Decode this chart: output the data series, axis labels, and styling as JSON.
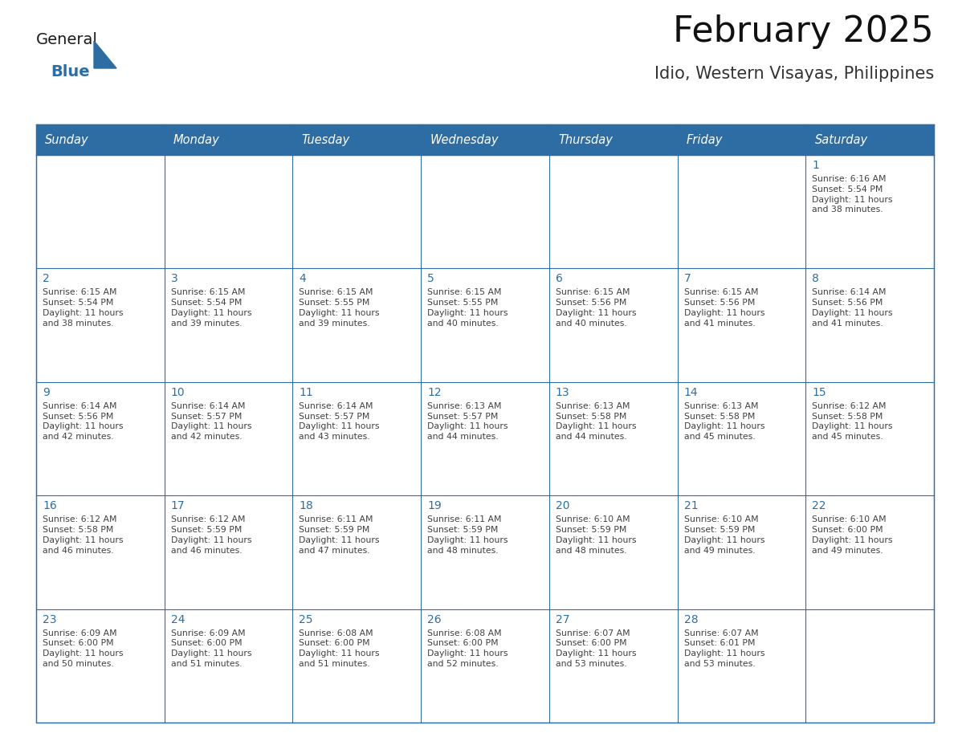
{
  "title": "February 2025",
  "subtitle": "Idio, Western Visayas, Philippines",
  "header_bg": "#2E6DA4",
  "header_text_color": "#FFFFFF",
  "cell_bg_even": "#F2F2F2",
  "cell_bg_odd": "#FFFFFF",
  "cell_border_color": "#2E6DA4",
  "day_number_color": "#2E6DA4",
  "cell_text_color": "#404040",
  "days_of_week": [
    "Sunday",
    "Monday",
    "Tuesday",
    "Wednesday",
    "Thursday",
    "Friday",
    "Saturday"
  ],
  "weeks": [
    [
      {
        "day": null,
        "info": null
      },
      {
        "day": null,
        "info": null
      },
      {
        "day": null,
        "info": null
      },
      {
        "day": null,
        "info": null
      },
      {
        "day": null,
        "info": null
      },
      {
        "day": null,
        "info": null
      },
      {
        "day": 1,
        "info": "Sunrise: 6:16 AM\nSunset: 5:54 PM\nDaylight: 11 hours\nand 38 minutes."
      }
    ],
    [
      {
        "day": 2,
        "info": "Sunrise: 6:15 AM\nSunset: 5:54 PM\nDaylight: 11 hours\nand 38 minutes."
      },
      {
        "day": 3,
        "info": "Sunrise: 6:15 AM\nSunset: 5:54 PM\nDaylight: 11 hours\nand 39 minutes."
      },
      {
        "day": 4,
        "info": "Sunrise: 6:15 AM\nSunset: 5:55 PM\nDaylight: 11 hours\nand 39 minutes."
      },
      {
        "day": 5,
        "info": "Sunrise: 6:15 AM\nSunset: 5:55 PM\nDaylight: 11 hours\nand 40 minutes."
      },
      {
        "day": 6,
        "info": "Sunrise: 6:15 AM\nSunset: 5:56 PM\nDaylight: 11 hours\nand 40 minutes."
      },
      {
        "day": 7,
        "info": "Sunrise: 6:15 AM\nSunset: 5:56 PM\nDaylight: 11 hours\nand 41 minutes."
      },
      {
        "day": 8,
        "info": "Sunrise: 6:14 AM\nSunset: 5:56 PM\nDaylight: 11 hours\nand 41 minutes."
      }
    ],
    [
      {
        "day": 9,
        "info": "Sunrise: 6:14 AM\nSunset: 5:56 PM\nDaylight: 11 hours\nand 42 minutes."
      },
      {
        "day": 10,
        "info": "Sunrise: 6:14 AM\nSunset: 5:57 PM\nDaylight: 11 hours\nand 42 minutes."
      },
      {
        "day": 11,
        "info": "Sunrise: 6:14 AM\nSunset: 5:57 PM\nDaylight: 11 hours\nand 43 minutes."
      },
      {
        "day": 12,
        "info": "Sunrise: 6:13 AM\nSunset: 5:57 PM\nDaylight: 11 hours\nand 44 minutes."
      },
      {
        "day": 13,
        "info": "Sunrise: 6:13 AM\nSunset: 5:58 PM\nDaylight: 11 hours\nand 44 minutes."
      },
      {
        "day": 14,
        "info": "Sunrise: 6:13 AM\nSunset: 5:58 PM\nDaylight: 11 hours\nand 45 minutes."
      },
      {
        "day": 15,
        "info": "Sunrise: 6:12 AM\nSunset: 5:58 PM\nDaylight: 11 hours\nand 45 minutes."
      }
    ],
    [
      {
        "day": 16,
        "info": "Sunrise: 6:12 AM\nSunset: 5:58 PM\nDaylight: 11 hours\nand 46 minutes."
      },
      {
        "day": 17,
        "info": "Sunrise: 6:12 AM\nSunset: 5:59 PM\nDaylight: 11 hours\nand 46 minutes."
      },
      {
        "day": 18,
        "info": "Sunrise: 6:11 AM\nSunset: 5:59 PM\nDaylight: 11 hours\nand 47 minutes."
      },
      {
        "day": 19,
        "info": "Sunrise: 6:11 AM\nSunset: 5:59 PM\nDaylight: 11 hours\nand 48 minutes."
      },
      {
        "day": 20,
        "info": "Sunrise: 6:10 AM\nSunset: 5:59 PM\nDaylight: 11 hours\nand 48 minutes."
      },
      {
        "day": 21,
        "info": "Sunrise: 6:10 AM\nSunset: 5:59 PM\nDaylight: 11 hours\nand 49 minutes."
      },
      {
        "day": 22,
        "info": "Sunrise: 6:10 AM\nSunset: 6:00 PM\nDaylight: 11 hours\nand 49 minutes."
      }
    ],
    [
      {
        "day": 23,
        "info": "Sunrise: 6:09 AM\nSunset: 6:00 PM\nDaylight: 11 hours\nand 50 minutes."
      },
      {
        "day": 24,
        "info": "Sunrise: 6:09 AM\nSunset: 6:00 PM\nDaylight: 11 hours\nand 51 minutes."
      },
      {
        "day": 25,
        "info": "Sunrise: 6:08 AM\nSunset: 6:00 PM\nDaylight: 11 hours\nand 51 minutes."
      },
      {
        "day": 26,
        "info": "Sunrise: 6:08 AM\nSunset: 6:00 PM\nDaylight: 11 hours\nand 52 minutes."
      },
      {
        "day": 27,
        "info": "Sunrise: 6:07 AM\nSunset: 6:00 PM\nDaylight: 11 hours\nand 53 minutes."
      },
      {
        "day": 28,
        "info": "Sunrise: 6:07 AM\nSunset: 6:01 PM\nDaylight: 11 hours\nand 53 minutes."
      },
      {
        "day": null,
        "info": null
      }
    ]
  ],
  "logo_color_general": "#1a1a1a",
  "logo_color_blue": "#2E6DA4",
  "logo_triangle_color": "#2E6DA4",
  "title_fontsize": 32,
  "subtitle_fontsize": 15,
  "header_fontsize": 10.5,
  "day_num_fontsize": 10,
  "cell_info_fontsize": 7.8
}
